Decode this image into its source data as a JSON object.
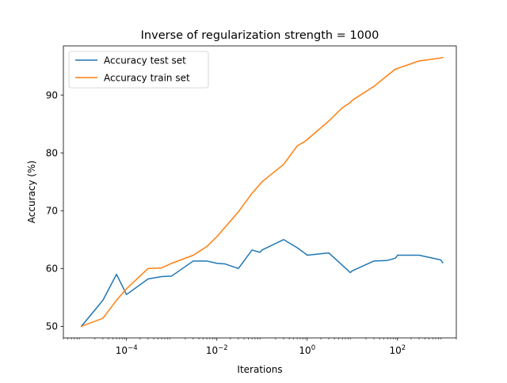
{
  "chart_data": {
    "type": "line",
    "title": "Inverse of regularization strength = 1000",
    "xlabel": "Iterations",
    "ylabel": "Accuracy (%)",
    "xscale": "log",
    "xlim": [
      4e-06,
      2000
    ],
    "ylim": [
      48.0,
      98.5
    ],
    "grid": false,
    "legend_position": "top-left",
    "x_ticks": [
      {
        "value": 0.0001,
        "base": "10",
        "exp": "−4"
      },
      {
        "value": 0.01,
        "base": "10",
        "exp": "−2"
      },
      {
        "value": 1,
        "base": "10",
        "exp": "0"
      },
      {
        "value": 100,
        "base": "10",
        "exp": "2"
      }
    ],
    "y_ticks": [
      50,
      60,
      70,
      80,
      90
    ],
    "series": [
      {
        "name": "Accuracy test set",
        "color": "#1f77b4",
        "x": [
          1e-05,
          3e-05,
          6e-05,
          0.0001,
          0.0003,
          0.0006,
          0.001,
          0.003,
          0.006,
          0.01,
          0.015,
          0.03,
          0.06,
          0.09,
          0.1,
          0.3,
          0.6,
          0.9,
          1,
          3,
          9,
          10,
          30,
          60,
          90,
          100,
          300,
          900,
          1000
        ],
        "y": [
          50.0,
          54.5,
          59.0,
          55.5,
          58.2,
          58.6,
          58.7,
          61.3,
          61.3,
          60.9,
          60.8,
          60.0,
          63.2,
          62.8,
          63.2,
          65.0,
          63.6,
          62.6,
          62.3,
          62.7,
          59.3,
          59.6,
          61.3,
          61.4,
          61.8,
          62.3,
          62.3,
          61.5,
          61.0
        ]
      },
      {
        "name": "Accuracy train set",
        "color": "#ff7f0e",
        "x": [
          1e-05,
          3e-05,
          6e-05,
          0.0001,
          0.0003,
          0.0006,
          0.001,
          0.003,
          0.006,
          0.01,
          0.03,
          0.06,
          0.1,
          0.3,
          0.6,
          0.9,
          1,
          3,
          6,
          9,
          10,
          30,
          60,
          90,
          100,
          300,
          900,
          1000
        ],
        "y": [
          50.0,
          51.4,
          54.5,
          56.5,
          60.0,
          60.1,
          60.9,
          62.3,
          63.8,
          65.5,
          69.8,
          73.0,
          75.0,
          78.0,
          81.2,
          82.0,
          82.3,
          85.5,
          87.8,
          88.7,
          89.1,
          91.5,
          93.4,
          94.5,
          94.6,
          95.9,
          96.4,
          96.5
        ]
      }
    ]
  }
}
